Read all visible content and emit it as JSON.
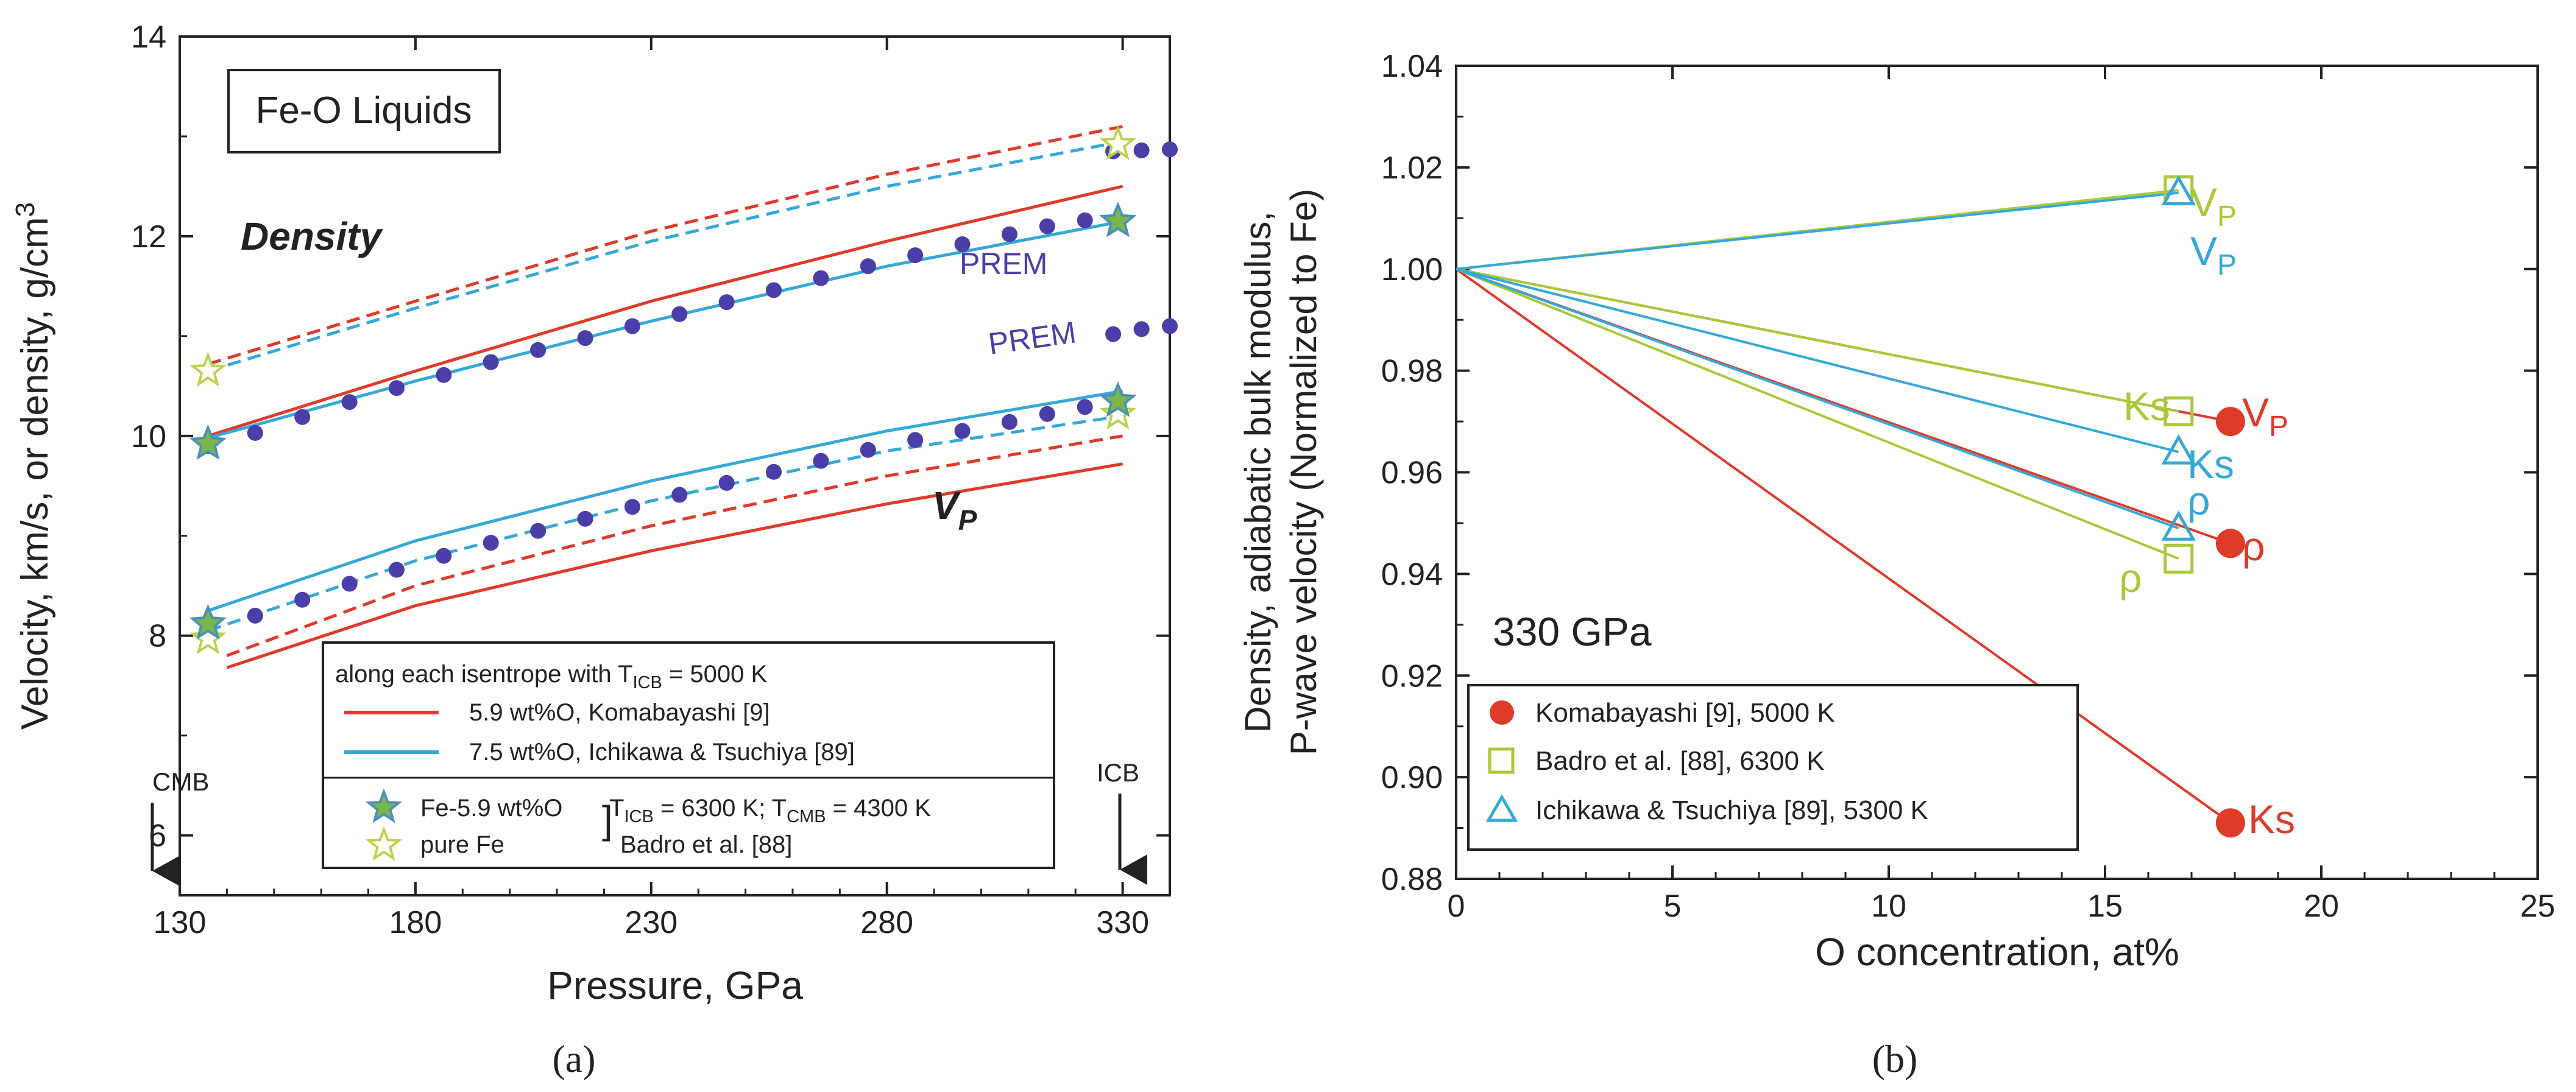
{
  "figure": {
    "caption_a": "(a)",
    "caption_b": "(b)"
  },
  "chart_data": [
    {
      "type": "line",
      "panel": "(a)",
      "title_box": "Fe-O Liquids",
      "xlabel": "Pressure, GPa",
      "ylabel": "Velocity, km/s, or density, g/cm³",
      "ylabel_main": "Velocity, km/s, or density, g/cm",
      "ylabel_sup": "3",
      "xlim": [
        130,
        340
      ],
      "ylim": [
        5.4,
        14
      ],
      "xticks": [
        130,
        180,
        230,
        280,
        330
      ],
      "yticks": [
        6,
        8,
        10,
        12,
        14
      ],
      "annotations": {
        "density": "Density",
        "vp_main": "V",
        "vp_sub": "P",
        "prem1": "PREM",
        "prem2": "PREM",
        "cmb": "CMB",
        "icb": "ICB"
      },
      "colors": {
        "red": "#e03a2a",
        "blue": "#36a8d8",
        "prem": "#4a3ea8",
        "star_fill": "#7ab648",
        "star_stroke": "#4a8fbf",
        "pure_fe": "#b8d44a"
      },
      "series": [
        {
          "name": "Density, 5.9 wt%O, Komabayashi (solid)",
          "color": "#e03a2a",
          "dash": false,
          "x": [
            136,
            180,
            230,
            280,
            330
          ],
          "y": [
            10.0,
            10.65,
            11.35,
            11.95,
            12.5
          ]
        },
        {
          "name": "Density, 7.5 wt%O, Ichikawa & Tsuchiya (solid)",
          "color": "#36a8d8",
          "dash": false,
          "x": [
            136,
            180,
            230,
            280,
            330
          ],
          "y": [
            9.98,
            10.55,
            11.15,
            11.7,
            12.15
          ]
        },
        {
          "name": "Density, Fe-5.9 wt%O, Badro (dashed red)",
          "color": "#e03a2a",
          "dash": true,
          "x": [
            136,
            180,
            230,
            280,
            330
          ],
          "y": [
            10.72,
            11.35,
            12.05,
            12.62,
            13.1
          ]
        },
        {
          "name": "Density, pure Fe, Badro (dashed blue)",
          "color": "#36a8d8",
          "dash": true,
          "x": [
            136,
            180,
            230,
            280,
            330
          ],
          "y": [
            10.65,
            11.28,
            11.95,
            12.5,
            12.95
          ]
        },
        {
          "name": "VP, 5.9 wt%O, Komabayashi (solid)",
          "color": "#e03a2a",
          "dash": false,
          "x": [
            140,
            180,
            230,
            280,
            330
          ],
          "y": [
            7.68,
            8.3,
            8.85,
            9.32,
            9.72
          ]
        },
        {
          "name": "VP, 7.5 wt%O, Ichikawa & Tsuchiya (solid)",
          "color": "#36a8d8",
          "dash": false,
          "x": [
            136,
            180,
            230,
            280,
            330
          ],
          "y": [
            8.25,
            8.95,
            9.55,
            10.05,
            10.45
          ]
        },
        {
          "name": "VP, Badro (dashed red)",
          "color": "#e03a2a",
          "dash": true,
          "x": [
            140,
            180,
            230,
            280,
            330
          ],
          "y": [
            7.8,
            8.5,
            9.1,
            9.6,
            10.0
          ]
        },
        {
          "name": "VP, Badro (dashed blue)",
          "color": "#36a8d8",
          "dash": true,
          "x": [
            136,
            180,
            230,
            280,
            330
          ],
          "y": [
            8.05,
            8.75,
            9.35,
            9.85,
            10.2
          ]
        }
      ],
      "prem_density": {
        "x": [
          136,
          146,
          156,
          166,
          176,
          186,
          196,
          206,
          216,
          226,
          236,
          246,
          256,
          266,
          276,
          286,
          296,
          306,
          314,
          322,
          328,
          334,
          340
        ],
        "y": [
          9.9,
          10.03,
          10.19,
          10.34,
          10.48,
          10.61,
          10.74,
          10.86,
          10.98,
          11.1,
          11.22,
          11.34,
          11.46,
          11.58,
          11.7,
          11.81,
          11.92,
          12.02,
          12.1,
          12.16,
          11.02,
          11.07,
          11.1
        ]
      },
      "prem_vp": {
        "x": [
          136,
          146,
          156,
          166,
          176,
          186,
          196,
          206,
          216,
          226,
          236,
          246,
          256,
          266,
          276,
          286,
          296,
          306,
          314,
          322,
          328,
          334,
          340
        ],
        "y": [
          8.06,
          8.2,
          8.36,
          8.52,
          8.66,
          8.8,
          8.93,
          9.05,
          9.17,
          9.29,
          9.41,
          9.53,
          9.64,
          9.75,
          9.86,
          9.96,
          10.05,
          10.14,
          10.22,
          10.29,
          12.85,
          12.86,
          12.87
        ]
      },
      "stars_fe59": {
        "x": [
          136,
          136,
          329,
          329
        ],
        "y": [
          9.92,
          8.12,
          12.15,
          10.35
        ]
      },
      "stars_purefe": {
        "x": [
          136,
          136,
          329,
          329
        ],
        "y": [
          10.65,
          7.97,
          12.92,
          10.22
        ]
      },
      "legend": {
        "header_main": "along each isentrope with T",
        "header_sub": "ICB",
        "header_tail": " = 5000 K",
        "red_line": "5.9 wt%O, Komabayashi [9]",
        "blue_line": "7.5 wt%O, Ichikawa & Tsuchiya [89]",
        "star1": "Fe-5.9 wt%O",
        "star2": "pure Fe",
        "t_label_1": "T",
        "t_sub_1": "ICB",
        "t_mid": " = 6300 K; T",
        "t_sub_2": "CMB",
        "t_tail": " = 4300 K",
        "badro": "Badro et al. [88]"
      }
    },
    {
      "type": "scatter",
      "panel": "(b)",
      "xlabel": "O concentration, at%",
      "ylabel_line1": "Density, adiabatic bulk modulus,",
      "ylabel_line2": "P-wave velocity (Normalized to Fe)",
      "xlim": [
        0,
        25
      ],
      "ylim": [
        0.88,
        1.04
      ],
      "xticks": [
        0,
        5,
        10,
        15,
        20,
        25
      ],
      "yticks": [
        0.88,
        0.9,
        0.92,
        0.94,
        0.96,
        0.98,
        1.0,
        1.02,
        1.04
      ],
      "ytick_labels": [
        "0.88",
        "0.90",
        "0.92",
        "0.94",
        "0.96",
        "0.98",
        "1.00",
        "1.02",
        "1.04"
      ],
      "pressure_label": "330 GPa",
      "series": [
        {
          "name": "Komabayashi [9], 5000 K",
          "color": "#e03a2a",
          "marker": "circle",
          "x": [
            17.9,
            17.9,
            17.9
          ],
          "y": [
            0.97,
            0.946,
            0.891
          ],
          "labels": [
            "VP",
            "ρ",
            "Ks"
          ]
        },
        {
          "name": "Badro et al. [88], 6300 K",
          "color": "#a9c93a",
          "marker": "square",
          "x": [
            16.7,
            16.7,
            16.7
          ],
          "y": [
            1.0155,
            0.972,
            0.943
          ],
          "labels": [
            "VP",
            "Ks",
            "ρ"
          ]
        },
        {
          "name": "Ichikawa & Tsuchiya [89], 5300 K",
          "color": "#36a8d8",
          "marker": "triangle",
          "x": [
            16.7,
            16.7,
            16.7
          ],
          "y": [
            1.015,
            0.964,
            0.949
          ],
          "labels": [
            "VP",
            "Ks",
            "ρ"
          ]
        }
      ],
      "point_labels": {
        "badro_vp_main": "V",
        "badro_vp_sub": "P",
        "ichi_vp_main": "V",
        "ichi_vp_sub": "P",
        "badro_ks": "Ks",
        "koma_vp_main": "V",
        "koma_vp_sub": "P",
        "ichi_ks": "Ks",
        "ichi_rho": "ρ",
        "koma_rho": "ρ",
        "badro_rho": "ρ",
        "koma_ks": "Ks"
      },
      "legend": [
        "Komabayashi [9], 5000 K",
        "Badro et al. [88], 6300 K",
        "Ichikawa & Tsuchiya [89], 5300 K"
      ]
    }
  ]
}
